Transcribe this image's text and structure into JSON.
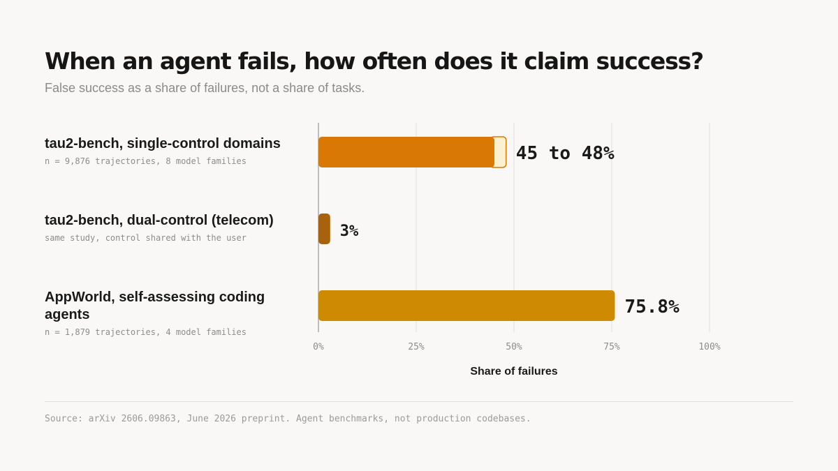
{
  "title": "When an agent fails, how often does it claim success?",
  "subtitle": "False success as a share of failures, not a share of tasks.",
  "source": "Source: arXiv 2606.09863, June 2026 preprint. Agent benchmarks, not production codebases.",
  "rows": [
    {
      "name": "tau2-bench, single-control domains",
      "detail": "n = 9,876 trajectories, 8 model families"
    },
    {
      "name": "tau2-bench, dual-control (telecom)",
      "detail": "same study, control shared with the user"
    },
    {
      "name": "AppWorld, self-assessing coding agents",
      "detail": "n = 1,879 trajectories, 4 model families"
    }
  ],
  "colors": {
    "single_control": "#da7806",
    "single_control_range": "#fdf0cf",
    "dual_control": "#a9620c",
    "appworld": "#cd8a02",
    "grid": "#e2e0dc",
    "axis": "#bdbdbd"
  },
  "chart_data": {
    "type": "bar",
    "orientation": "horizontal",
    "categories": [
      "tau2-bench, single-control domains",
      "tau2-bench, dual-control (telecom)",
      "AppWorld, self-assessing coding agents"
    ],
    "values": [
      {
        "low": 45,
        "high": 48,
        "label": "45 to 48%"
      },
      {
        "low": 3,
        "high": 3,
        "label": "3%"
      },
      {
        "low": 75.8,
        "high": 75.8,
        "label": "75.8%"
      }
    ],
    "xlabel": "Share of failures",
    "xlim": [
      0,
      100
    ],
    "ticks": [
      "0%",
      "25%",
      "50%",
      "75%",
      "100%"
    ],
    "grid": true
  }
}
